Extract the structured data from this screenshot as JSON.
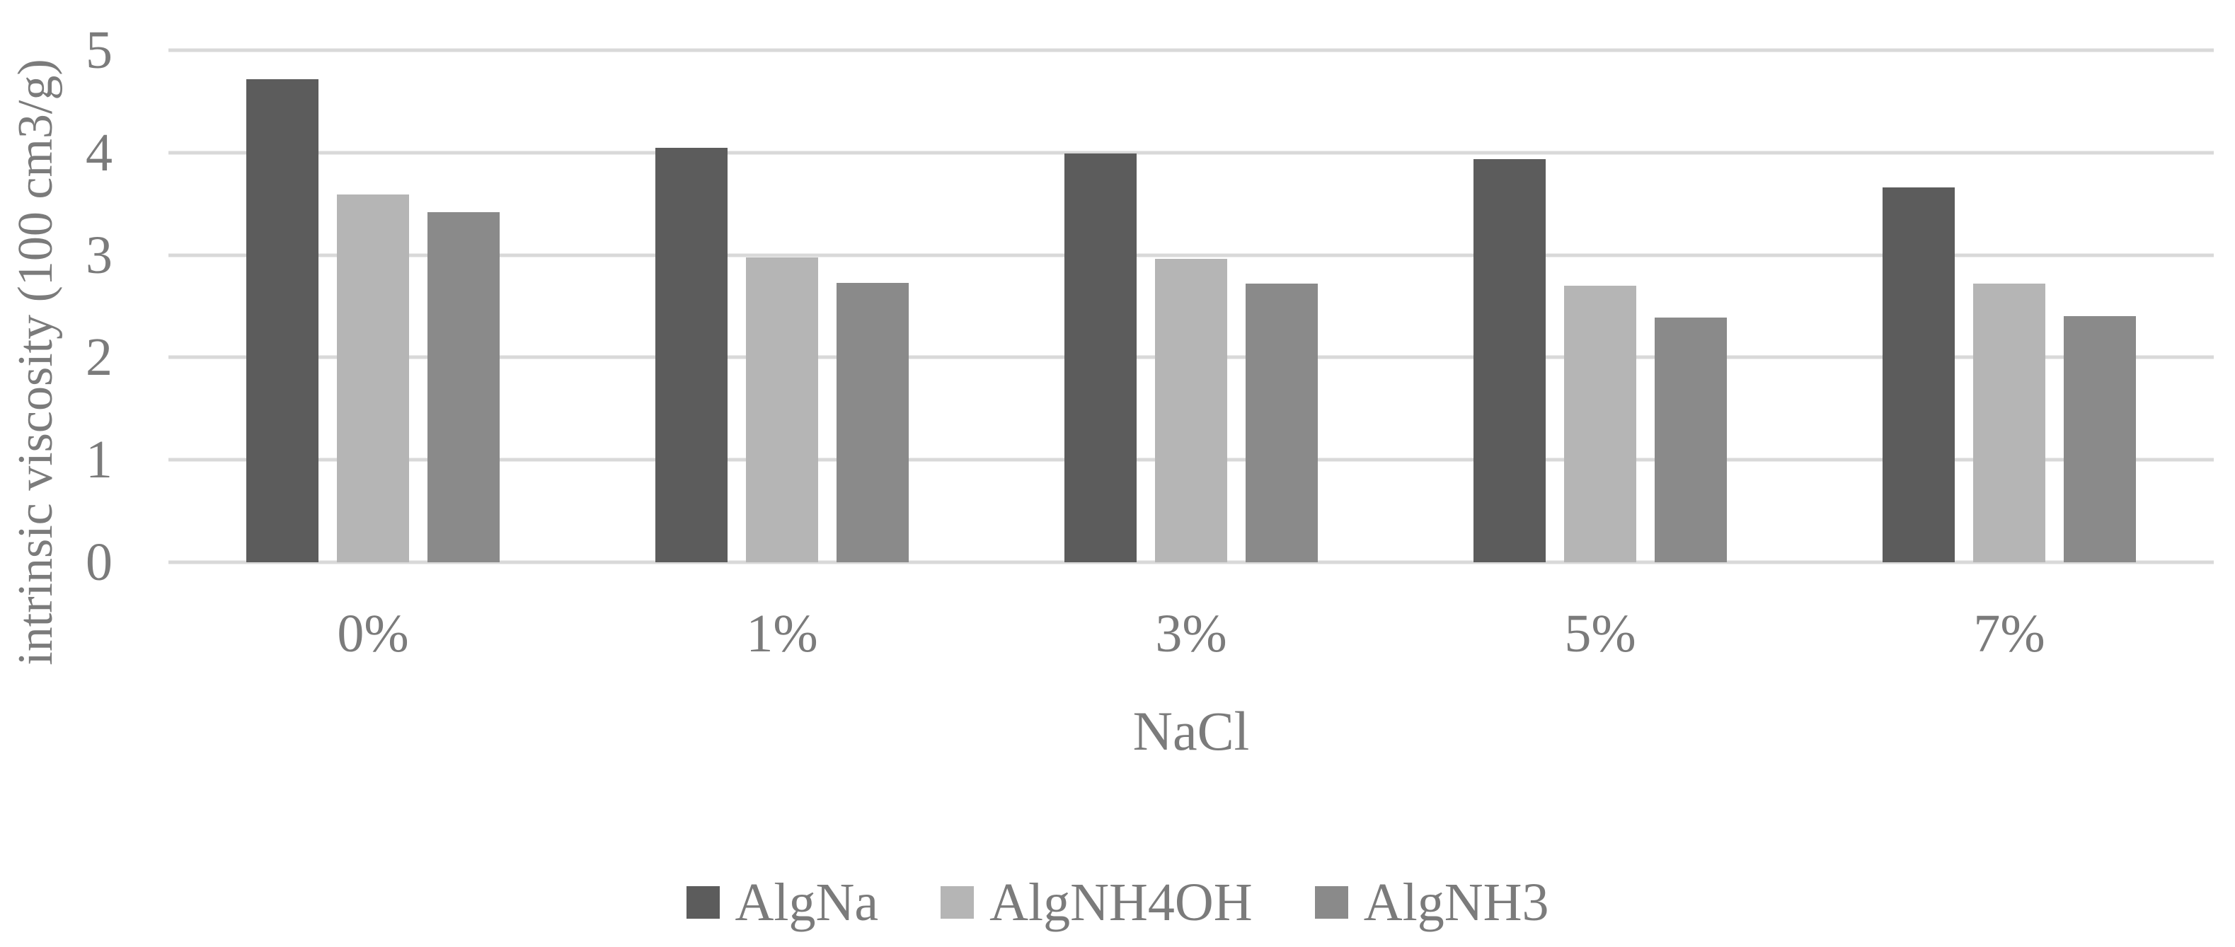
{
  "chart_data": {
    "type": "bar",
    "title": "",
    "categories": [
      "0%",
      "1%",
      "3%",
      "5%",
      "7%"
    ],
    "series": [
      {
        "name": "AlgNa",
        "color": "#5c5c5c",
        "values": [
          4.72,
          4.05,
          3.99,
          3.94,
          3.66
        ]
      },
      {
        "name": "AlgNH4OH",
        "color": "#b5b5b5",
        "values": [
          3.59,
          2.98,
          2.96,
          2.7,
          2.72
        ]
      },
      {
        "name": "AlgNH3",
        "color": "#8a8a8a",
        "values": [
          3.42,
          2.73,
          2.72,
          2.39,
          2.4
        ]
      }
    ],
    "xlabel": "NaCl",
    "ylabel": "intrinsic viscosity (100 cm3/g)",
    "ylim": [
      0,
      5
    ],
    "yticks": [
      0,
      1,
      2,
      3,
      4,
      5
    ],
    "grid": true,
    "gridline_color": "#d9d9d9",
    "text_color": "#7b7b7b",
    "background": "#ffffff",
    "legend_position": "bottom"
  }
}
